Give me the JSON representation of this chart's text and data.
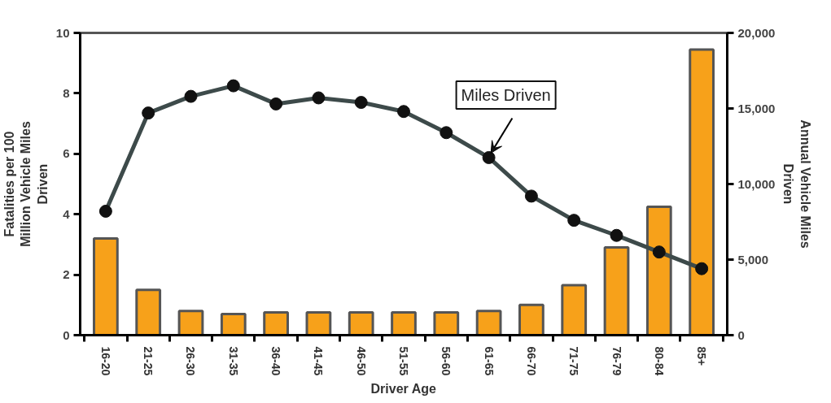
{
  "chart_data": {
    "type": "bar",
    "xlabel": "Driver Age",
    "ylabel": "Fatalities per 100 Million Vehicle Miles Driven",
    "y2label": "Annual Vehicle Miles Driven",
    "categories": [
      "16-20",
      "21-25",
      "26-30",
      "31-35",
      "36-40",
      "41-45",
      "46-50",
      "51-55",
      "56-60",
      "61-65",
      "66-70",
      "71-75",
      "76-79",
      "80-84",
      "85+"
    ],
    "series": [
      {
        "color": "#f7a11a",
        "values": [
          3.2,
          1.5,
          0.8,
          0.7,
          0.75,
          0.75,
          0.75,
          0.75,
          0.75,
          0.8,
          1.0,
          1.65,
          2.9,
          4.25,
          9.45
        ]
      },
      {
        "type": "line",
        "name": "Miles Driven",
        "axis": "y2",
        "color": "#3d4a4a",
        "marker": "circle",
        "values": [
          8200,
          14700,
          15800,
          16500,
          15300,
          15700,
          15400,
          14800,
          13400,
          11750,
          9200,
          7600,
          6600,
          5500,
          4400
        ]
      }
    ],
    "ylim": [
      0,
      10
    ],
    "yticks": [
      0,
      2,
      4,
      6,
      8,
      10
    ],
    "y2lim": [
      0,
      20000
    ],
    "y2ticks": [
      {
        "value": 0,
        "label": "0"
      },
      {
        "value": 5000,
        "label": "5,000"
      },
      {
        "value": 10000,
        "label": "10,000"
      },
      {
        "value": 15000,
        "label": "15,000"
      },
      {
        "value": 20000,
        "label": "20,000"
      }
    ],
    "grid": false
  }
}
